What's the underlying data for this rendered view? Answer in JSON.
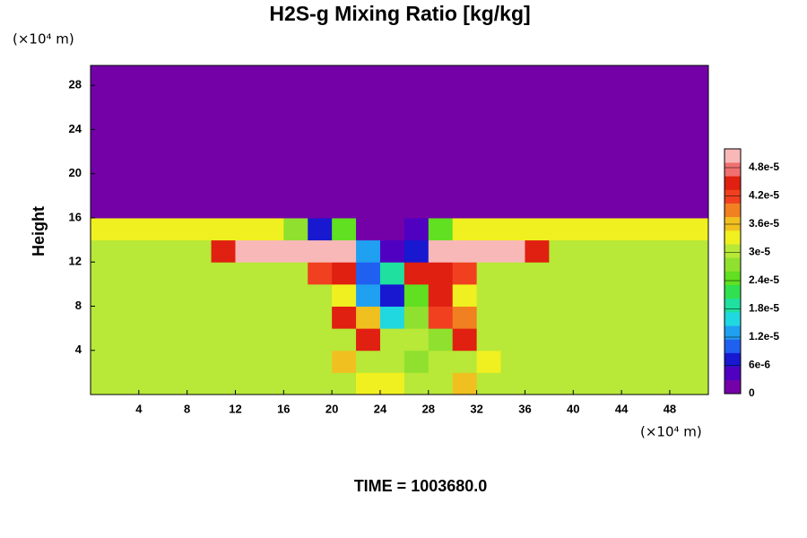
{
  "chart_data": {
    "type": "heatmap",
    "title": "H2S-g Mixing Ratio [kg/kg]",
    "y_label": "Height",
    "y_unit": "(×10⁴ m)",
    "x_unit": "(×10⁴ m)",
    "annotation": "TIME = 1003680.0",
    "xlim": [
      0,
      51.2
    ],
    "ylim": [
      0,
      29.8
    ],
    "xticks": [
      4,
      8,
      12,
      16,
      20,
      24,
      28,
      32,
      36,
      40,
      44,
      48
    ],
    "yticks": [
      4,
      8,
      12,
      16,
      20,
      24,
      28
    ],
    "zlim": [
      0,
      5.2e-05
    ],
    "zticks": [
      0,
      {
        "value": 6e-06,
        "label": "6e-6"
      },
      {
        "value": 1.2e-05,
        "label": "1.2e-5"
      },
      {
        "value": 1.8e-05,
        "label": "1.8e-5"
      },
      {
        "value": 2.4e-05,
        "label": "2.4e-5"
      },
      {
        "value": 3e-05,
        "label": "3e-5"
      },
      {
        "value": 3.6e-05,
        "label": "3.6e-5"
      },
      {
        "value": 4.2e-05,
        "label": "4.2e-5"
      },
      {
        "value": 4.8e-05,
        "label": "4.8e-5"
      }
    ],
    "colormap": [
      "#7400a8",
      "#5000c0",
      "#1818d0",
      "#2060f0",
      "#20a0f0",
      "#20d8e0",
      "#20e0a0",
      "#30e050",
      "#60e020",
      "#90e030",
      "#b8e838",
      "#f0f020",
      "#f0c020",
      "#f08020",
      "#f04020",
      "#e02010",
      "#f07070",
      "#f8b8b8"
    ],
    "x": [
      1,
      3,
      5,
      7,
      9,
      11,
      13,
      15,
      17,
      19,
      21,
      23,
      25,
      27,
      29,
      31,
      33,
      35,
      37,
      39,
      41,
      43,
      45,
      47,
      49,
      51
    ],
    "y": [
      1,
      3,
      5,
      7,
      9,
      11,
      13,
      15,
      17,
      19,
      21,
      23,
      25,
      27,
      29
    ],
    "z": [
      [
        2.9e-05,
        2.9e-05,
        2.9e-05,
        2.9e-05,
        2.9e-05,
        2.9e-05,
        2.9e-05,
        2.9e-05,
        2.9e-05,
        2.9e-05,
        2.9e-05,
        3.3e-05,
        3.3e-05,
        2.9e-05,
        2.9e-05,
        3.5e-05,
        2.9e-05,
        2.9e-05,
        2.9e-05,
        2.9e-05,
        2.9e-05,
        2.9e-05,
        2.9e-05,
        2.9e-05,
        2.9e-05,
        2.9e-05
      ],
      [
        2.9e-05,
        2.9e-05,
        2.9e-05,
        2.9e-05,
        2.9e-05,
        2.9e-05,
        2.9e-05,
        2.9e-05,
        2.9e-05,
        2.9e-05,
        3.5e-05,
        2.9e-05,
        2.9e-05,
        2.6e-05,
        2.9e-05,
        2.9e-05,
        3.3e-05,
        2.9e-05,
        2.9e-05,
        2.9e-05,
        2.9e-05,
        2.9e-05,
        2.9e-05,
        2.9e-05,
        2.9e-05,
        2.9e-05
      ],
      [
        2.9e-05,
        2.9e-05,
        2.9e-05,
        2.9e-05,
        2.9e-05,
        2.9e-05,
        2.9e-05,
        2.9e-05,
        2.9e-05,
        2.9e-05,
        2.9e-05,
        4.4e-05,
        2.9e-05,
        2.9e-05,
        2.6e-05,
        4.4e-05,
        2.9e-05,
        2.9e-05,
        2.9e-05,
        2.9e-05,
        2.9e-05,
        2.9e-05,
        2.9e-05,
        2.9e-05,
        2.9e-05,
        2.9e-05
      ],
      [
        2.9e-05,
        2.9e-05,
        2.9e-05,
        2.9e-05,
        2.9e-05,
        2.9e-05,
        2.9e-05,
        2.9e-05,
        2.9e-05,
        2.9e-05,
        4.6e-05,
        3.5e-05,
        1.6e-05,
        2.6e-05,
        4.2e-05,
        4e-05,
        2.9e-05,
        2.9e-05,
        2.9e-05,
        2.9e-05,
        2.9e-05,
        2.9e-05,
        2.9e-05,
        2.9e-05,
        2.9e-05,
        2.9e-05
      ],
      [
        2.9e-05,
        2.9e-05,
        2.9e-05,
        2.9e-05,
        2.9e-05,
        2.9e-05,
        2.9e-05,
        2.9e-05,
        2.9e-05,
        2.9e-05,
        3.3e-05,
        1.2e-05,
        8e-06,
        2.4e-05,
        4.4e-05,
        3.3e-05,
        2.9e-05,
        2.9e-05,
        2.9e-05,
        2.9e-05,
        2.9e-05,
        2.9e-05,
        2.9e-05,
        2.9e-05,
        2.9e-05,
        2.9e-05
      ],
      [
        2.9e-05,
        2.9e-05,
        2.9e-05,
        2.9e-05,
        2.9e-05,
        2.9e-05,
        2.9e-05,
        2.9e-05,
        2.9e-05,
        4.2e-05,
        4.6e-05,
        1e-05,
        2e-05,
        4.6e-05,
        4.6e-05,
        4.2e-05,
        2.9e-05,
        2.9e-05,
        2.9e-05,
        2.9e-05,
        2.9e-05,
        2.9e-05,
        2.9e-05,
        2.9e-05,
        2.9e-05,
        2.9e-05
      ],
      [
        3.1e-05,
        3.1e-05,
        3.1e-05,
        3.1e-05,
        3.1e-05,
        4.4e-05,
        5e-05,
        5e-05,
        5e-05,
        5e-05,
        5e-05,
        1.4e-05,
        4e-06,
        6e-06,
        5e-05,
        5e-05,
        5e-05,
        5e-05,
        4.6e-05,
        3.1e-05,
        3.1e-05,
        3.1e-05,
        3.1e-05,
        3.1e-05,
        3.1e-05,
        3.1e-05
      ],
      [
        3.3e-05,
        3.3e-05,
        3.3e-05,
        3.3e-05,
        3.3e-05,
        3.3e-05,
        3.3e-05,
        3.3e-05,
        2.6e-05,
        6e-06,
        2.4e-05,
        2e-06,
        0,
        4e-06,
        2.4e-05,
        3.3e-05,
        3.3e-05,
        3.3e-05,
        3.3e-05,
        3.3e-05,
        3.3e-05,
        3.3e-05,
        3.3e-05,
        3.3e-05,
        3.3e-05,
        3.3e-05
      ],
      [
        0,
        0,
        0,
        0,
        0,
        0,
        0,
        0,
        0,
        0,
        0,
        0,
        0,
        0,
        0,
        0,
        0,
        0,
        0,
        0,
        0,
        0,
        0,
        0,
        0,
        0
      ],
      [
        0,
        0,
        0,
        0,
        0,
        0,
        0,
        0,
        0,
        0,
        0,
        0,
        0,
        0,
        0,
        0,
        0,
        0,
        0,
        0,
        0,
        0,
        0,
        0,
        0,
        0
      ],
      [
        0,
        0,
        0,
        0,
        0,
        0,
        0,
        0,
        0,
        0,
        0,
        0,
        0,
        0,
        0,
        0,
        0,
        0,
        0,
        0,
        0,
        0,
        0,
        0,
        0,
        0
      ],
      [
        0,
        0,
        0,
        0,
        0,
        0,
        0,
        0,
        0,
        0,
        0,
        0,
        0,
        0,
        0,
        0,
        0,
        0,
        0,
        0,
        0,
        0,
        0,
        0,
        0,
        0
      ],
      [
        0,
        0,
        0,
        0,
        0,
        0,
        0,
        0,
        0,
        0,
        0,
        0,
        0,
        0,
        0,
        0,
        0,
        0,
        0,
        0,
        0,
        0,
        0,
        0,
        0,
        0
      ],
      [
        0,
        0,
        0,
        0,
        0,
        0,
        0,
        0,
        0,
        0,
        0,
        0,
        0,
        0,
        0,
        0,
        0,
        0,
        0,
        0,
        0,
        0,
        0,
        0,
        0,
        0
      ],
      [
        0,
        0,
        0,
        0,
        0,
        0,
        0,
        0,
        0,
        0,
        0,
        0,
        0,
        0,
        0,
        0,
        0,
        0,
        0,
        0,
        0,
        0,
        0,
        0,
        0,
        0
      ]
    ]
  }
}
